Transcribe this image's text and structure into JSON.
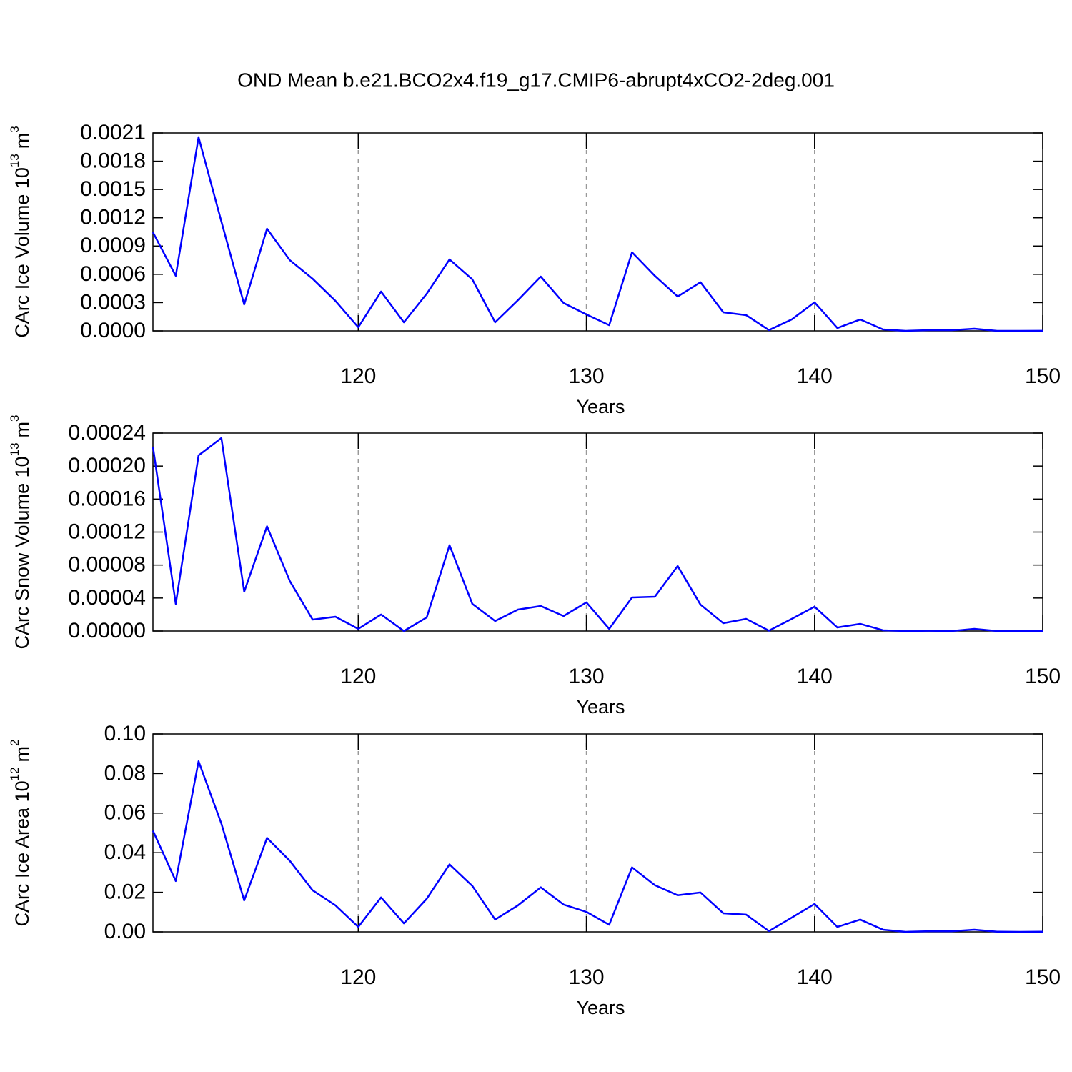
{
  "chart_data": [
    {
      "type": "line",
      "title": "OND Mean b.e21.BCO2x4.f19_g17.CMIP6-abrupt4xCO2-2deg.001",
      "ylabel": [
        "CArc Ice Volume 10",
        "13",
        "m",
        "3"
      ],
      "xlabel": "Years",
      "x": [
        111,
        112,
        113,
        114,
        115,
        116,
        117,
        118,
        119,
        120,
        121,
        122,
        123,
        124,
        125,
        126,
        127,
        128,
        129,
        130,
        131,
        132,
        133,
        134,
        135,
        136,
        137,
        138,
        139,
        140,
        141,
        142,
        143,
        144,
        145,
        146,
        147,
        148,
        149,
        150
      ],
      "series": [
        {
          "color": "#0000ff",
          "values": [
            0.001046,
            0.000584,
            0.002055,
            0.00116,
            0.00028,
            0.001084,
            0.00075,
            0.000553,
            0.000318,
            3.8e-05,
            0.000417,
            9.1e-05,
            0.000394,
            0.000758,
            0.000546,
            9.1e-05,
            0.000326,
            0.000576,
            0.000296,
            0.000174,
            6.1e-05,
            0.000834,
            0.000584,
            0.000364,
            0.000516,
            0.000197,
            0.000167,
            8e-06,
            0.000121,
            0.000303,
            3e-05,
            0.000121,
            1.5e-05,
            0,
            8e-06,
            8e-06,
            2.3e-05,
            0,
            0,
            1e-06
          ]
        }
      ],
      "xlim": [
        111,
        150
      ],
      "xticks": [
        120,
        130,
        140,
        150
      ],
      "ylim": [
        0,
        0.0021
      ],
      "yticks": [
        {
          "value": 0,
          "label": "0.0000"
        },
        {
          "value": 0.0003,
          "label": "0.0003"
        },
        {
          "value": 0.0006,
          "label": "0.0006"
        },
        {
          "value": 0.0009,
          "label": "0.0009"
        },
        {
          "value": 0.0012,
          "label": "0.0012"
        },
        {
          "value": 0.0015,
          "label": "0.0015"
        },
        {
          "value": 0.0018,
          "label": "0.0018"
        },
        {
          "value": 0.0021,
          "label": "0.0021"
        }
      ],
      "xgrid": true
    },
    {
      "type": "line",
      "ylabel": [
        "CArc Snow Volume 10",
        "13",
        "m",
        "3"
      ],
      "xlabel": "Years",
      "x": [
        111,
        112,
        113,
        114,
        115,
        116,
        117,
        118,
        119,
        120,
        121,
        122,
        123,
        124,
        125,
        126,
        127,
        128,
        129,
        130,
        131,
        132,
        133,
        134,
        135,
        136,
        137,
        138,
        139,
        140,
        141,
        142,
        143,
        144,
        145,
        146,
        147,
        148,
        149,
        150
      ],
      "series": [
        {
          "color": "#0000ff",
          "values": [
            0.0002235,
            3.29e-05,
            0.000213,
            0.000234,
            4.77e-05,
            0.000127,
            6.06e-05,
            1.39e-05,
            1.73e-05,
            2.6e-06,
            2e-05,
            0,
            1.65e-05,
            0.000104,
            3.29e-05,
            1.21e-05,
            2.6e-05,
            3.03e-05,
            1.82e-05,
            3.47e-05,
            2.6e-06,
            4.07e-05,
            4.16e-05,
            7.88e-05,
            3.2e-05,
            9.5e-06,
            1.47e-05,
            4e-07,
            1.47e-05,
            2.95e-05,
            4.3e-06,
            8.7e-06,
            9e-07,
            0,
            3e-07,
            0,
            2.6e-06,
            0,
            0,
            0
          ]
        }
      ],
      "xlim": [
        111,
        150
      ],
      "xticks": [
        120,
        130,
        140,
        150
      ],
      "ylim": [
        0,
        0.00024
      ],
      "yticks": [
        {
          "value": 0,
          "label": "0.00000"
        },
        {
          "value": 4e-05,
          "label": "0.00004"
        },
        {
          "value": 8e-05,
          "label": "0.00008"
        },
        {
          "value": 0.00012,
          "label": "0.00012"
        },
        {
          "value": 0.00016,
          "label": "0.00016"
        },
        {
          "value": 0.0002,
          "label": "0.00020"
        },
        {
          "value": 0.00024,
          "label": "0.00024"
        }
      ],
      "xgrid": true
    },
    {
      "type": "line",
      "ylabel": [
        "CArc Ice Area 10",
        "12",
        "m",
        "2"
      ],
      "xlabel": "Years",
      "x": [
        111,
        112,
        113,
        114,
        115,
        116,
        117,
        118,
        119,
        120,
        121,
        122,
        123,
        124,
        125,
        126,
        127,
        128,
        129,
        130,
        131,
        132,
        133,
        134,
        135,
        136,
        137,
        138,
        139,
        140,
        141,
        142,
        143,
        144,
        145,
        146,
        147,
        148,
        149,
        150
      ],
      "series": [
        {
          "color": "#0000ff",
          "values": [
            0.0511,
            0.0257,
            0.0862,
            0.0547,
            0.0159,
            0.0475,
            0.0359,
            0.021,
            0.0134,
            0.0025,
            0.0174,
            0.0043,
            0.0167,
            0.0341,
            0.0232,
            0.0062,
            0.0134,
            0.0225,
            0.0138,
            0.0101,
            0.0036,
            0.0326,
            0.0236,
            0.0185,
            0.0199,
            0.0094,
            0.0087,
            0.0004,
            0.0072,
            0.0141,
            0.0025,
            0.0062,
            0.0011,
            0,
            0.0003,
            0.0003,
            0.0011,
            0.0001,
            0,
            0.0001
          ]
        }
      ],
      "xlim": [
        111,
        150
      ],
      "xticks": [
        120,
        130,
        140,
        150
      ],
      "ylim": [
        0,
        0.1
      ],
      "yticks": [
        {
          "value": 0,
          "label": "0.00"
        },
        {
          "value": 0.02,
          "label": "0.02"
        },
        {
          "value": 0.04,
          "label": "0.04"
        },
        {
          "value": 0.06,
          "label": "0.06"
        },
        {
          "value": 0.08,
          "label": "0.08"
        },
        {
          "value": 0.1,
          "label": "0.10"
        }
      ],
      "xgrid": true
    }
  ]
}
